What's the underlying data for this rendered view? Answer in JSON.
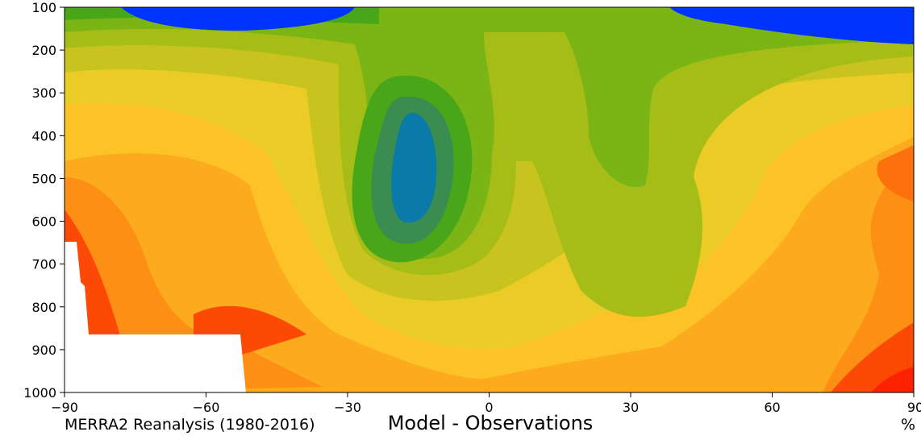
{
  "chart_data": {
    "type": "heatmap",
    "title": "Model - Observations",
    "subtitle": "MERRA2 Reanalysis (1980-2016)",
    "colorbar_unit": "%",
    "xlabel": "",
    "ylabel": "",
    "xlim": [
      -90,
      90
    ],
    "ylim": [
      1000,
      100
    ],
    "x_ticks": [
      -90,
      -60,
      -30,
      0,
      30,
      60,
      90
    ],
    "y_ticks": [
      100,
      200,
      300,
      400,
      500,
      600,
      700,
      800,
      900,
      1000
    ],
    "x_tick_labels": [
      "−90",
      "−60",
      "−30",
      "0",
      "30",
      "60",
      "90"
    ],
    "y_tick_labels": [
      "100",
      "200",
      "300",
      "400",
      "500",
      "600",
      "700",
      "800",
      "900",
      "1000"
    ],
    "colors": [
      "#0033ff",
      "#0a7aa8",
      "#3a8c50",
      "#4aa619",
      "#7ab515",
      "#a6bd17",
      "#c8c31e",
      "#ebcb25",
      "#fcc226",
      "#fcaa1e",
      "#fc8f14",
      "#fc710c",
      "#fc4a06",
      "#fc2200"
    ]
  }
}
